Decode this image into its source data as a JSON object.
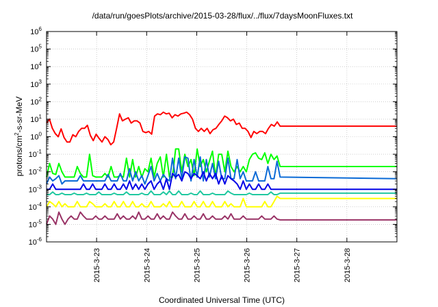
{
  "chart_data": {
    "type": "line",
    "title": "/data/run/goesPlots/archive/2015-03-28/flux/../flux/7daysMoonFluxes.txt",
    "xlabel": "Coordinated Universal Time (UTC)",
    "ylabel": "protons/cm²-s-sr-MeV",
    "y_scale": "log",
    "ylim": [
      "1e-6",
      "1e6"
    ],
    "y_tick_labels": [
      "10-6",
      "10-5",
      "10-4",
      "10-3",
      "10-2",
      "10-1",
      "100",
      "101",
      "102",
      "103",
      "104",
      "105",
      "106"
    ],
    "xlim": [
      "2015-03-22T00:00",
      "2015-03-29T00:00"
    ],
    "x_tick_labels": [
      "2015-3-23",
      "2015-3-24",
      "2015-3-25",
      "2015-3-26",
      "2015-3-27",
      "2015-3-28"
    ],
    "grid": true,
    "legend": "none",
    "series": [
      {
        "color": "#ff0000",
        "y": [
          6,
          10,
          3,
          1.5,
          1,
          2.8,
          0.9,
          0.5,
          0.5,
          1.3,
          1,
          2,
          3,
          3,
          4.5,
          1.2,
          0.6,
          1.4,
          0.8,
          0.5,
          1,
          0.7,
          0.35,
          0.5,
          3,
          20,
          8,
          10,
          12,
          6,
          8,
          8,
          6,
          2,
          1.7,
          2,
          1.4,
          15,
          20,
          18,
          25,
          20,
          22,
          12,
          18,
          15,
          20,
          22,
          25,
          18,
          10,
          3,
          2,
          3,
          2,
          3,
          1.5,
          2.5,
          3,
          5,
          8,
          15,
          12,
          8,
          10,
          5,
          6,
          3,
          3,
          2,
          0.9,
          2,
          1.5,
          2,
          2,
          1.5,
          3,
          5,
          4,
          7,
          4,
          4
        ]
      },
      {
        "color": "#00ff00",
        "y": [
          0.005,
          0.03,
          0.008,
          0.007,
          0.03,
          0.01,
          0.005,
          0.005,
          0.005,
          0.005,
          0.02,
          0.008,
          0.005,
          0.005,
          0.1,
          0.006,
          0.005,
          0.005,
          0.005,
          0.008,
          0.005,
          0.02,
          0.005,
          0.005,
          0.006,
          0.005,
          0.06,
          0.005,
          0.05,
          0.005,
          0.02,
          0.005,
          0.015,
          0.01,
          0.06,
          0.005,
          0.03,
          0.07,
          0.005,
          0.1,
          0.005,
          0.005,
          0.2,
          0.2,
          0.01,
          0.1,
          0.02,
          0.05,
          0.006,
          0.2,
          0.02,
          0.05,
          0.01,
          0.04,
          0.15,
          0.005,
          0.1,
          0.1,
          0.01,
          0.15,
          0.02,
          0.01,
          0.02,
          0.01,
          0.02,
          0.01,
          0.05,
          0.1,
          0.12,
          0.06,
          0.05,
          0.12,
          0.03,
          0.1,
          0.05,
          0.08,
          0.02,
          0.02
        ]
      },
      {
        "color": "#0a6ad6",
        "y": [
          0.002,
          0.005,
          0.003,
          0.004,
          0.006,
          0.002,
          0.003,
          0.003,
          0.003,
          0.003,
          0.003,
          0.006,
          0.003,
          0.003,
          0.003,
          0.003,
          0.003,
          0.003,
          0.003,
          0.003,
          0.007,
          0.003,
          0.003,
          0.003,
          0.008,
          0.003,
          0.003,
          0.015,
          0.003,
          0.01,
          0.003,
          0.006,
          0.002,
          0.006,
          0.02,
          0.003,
          0.008,
          0.003,
          0.007,
          0.004,
          0.003,
          0.06,
          0.004,
          0.06,
          0.004,
          0.07,
          0.06,
          0.003,
          0.05,
          0.005,
          0.07,
          0.003,
          0.05,
          0.005,
          0.03,
          0.004,
          0.04,
          0.004,
          0.004,
          0.06,
          0.004,
          0.004,
          0.05,
          0.004,
          0.01,
          0.003,
          0.003,
          0.003,
          0.01,
          0.003,
          0.003,
          0.003,
          0.02,
          0.004,
          0.004,
          0.04,
          0.005,
          0.004
        ]
      },
      {
        "color": "#0000e6",
        "y": [
          0.001,
          0.001,
          0.002,
          0.001,
          0.001,
          0.001,
          0.001,
          0.001,
          0.001,
          0.001,
          0.001,
          0.001,
          0.002,
          0.001,
          0.001,
          0.002,
          0.001,
          0.001,
          0.001,
          0.002,
          0.001,
          0.001,
          0.002,
          0.001,
          0.001,
          0.002,
          0.001,
          0.003,
          0.001,
          0.002,
          0.001,
          0.002,
          0.001,
          0.002,
          0.003,
          0.001,
          0.002,
          0.003,
          0.001,
          0.004,
          0.001,
          0.008,
          0.005,
          0.007,
          0.003,
          0.01,
          0.008,
          0.004,
          0.008,
          0.006,
          0.004,
          0.01,
          0.003,
          0.008,
          0.004,
          0.008,
          0.002,
          0.006,
          0.002,
          0.006,
          0.004,
          0.003,
          0.002,
          0.001,
          0.003,
          0.001,
          0.002,
          0.001,
          0.001,
          0.002,
          0.001,
          0.001,
          0.002,
          0.001,
          0.001,
          0.001,
          0.001,
          0.001
        ]
      },
      {
        "color": "#20c8a0",
        "y": [
          0.0005,
          0.0005,
          0.0007,
          0.0005,
          0.0005,
          0.0006,
          0.0005,
          0.0005,
          0.0005,
          0.0006,
          0.0005,
          0.0005,
          0.0005,
          0.0006,
          0.0005,
          0.0005,
          0.0005,
          0.0007,
          0.0005,
          0.0005,
          0.0005,
          0.0005,
          0.0006,
          0.0005,
          0.0005,
          0.0005,
          0.0007,
          0.0005,
          0.0005,
          0.0005,
          0.0005,
          0.0006,
          0.0005,
          0.0005,
          0.0008,
          0.0005,
          0.0005,
          0.0005,
          0.0007,
          0.0005,
          0.0008,
          0.0005,
          0.0005,
          0.0008,
          0.0005,
          0.0005,
          0.0005,
          0.0006,
          0.0005,
          0.0005,
          0.0008,
          0.0005,
          0.0005,
          0.0005,
          0.0006,
          0.0005,
          0.0005,
          0.0005,
          0.0005,
          0.0008,
          0.0006,
          0.0005,
          0.0005,
          0.0005,
          0.0005,
          0.0005,
          0.0006,
          0.0005,
          0.0005,
          0.0005,
          0.0005,
          0.0005,
          0.0005,
          0.0007,
          0.0005,
          0.0005,
          0.0006,
          0.0006
        ]
      },
      {
        "color": "#ffff00",
        "y": [
          0.0001,
          0.0002,
          0.00015,
          0.0001,
          0.0002,
          0.0001,
          0.00015,
          0.0001,
          0.0001,
          0.0001,
          0.0002,
          0.0001,
          0.0001,
          0.0001,
          0.0002,
          0.00015,
          0.0001,
          0.0001,
          0.0001,
          0.00015,
          0.0001,
          0.0001,
          0.0002,
          0.0001,
          0.0001,
          0.0002,
          0.0001,
          0.0001,
          0.0002,
          0.0001,
          0.0001,
          0.00015,
          0.0001,
          0.0001,
          0.0002,
          0.0001,
          0.0001,
          0.0001,
          0.00015,
          0.0001,
          0.0002,
          0.0001,
          0.0001,
          0.0001,
          0.0002,
          0.0001,
          0.0001,
          0.0001,
          0.0002,
          0.0001,
          0.0001,
          0.0002,
          0.0001,
          0.0001,
          0.0002,
          0.0001,
          0.0001,
          0.0001,
          0.0002,
          0.0001,
          0.00015,
          0.0001,
          0.0001,
          0.0001,
          0.0003,
          0.0001,
          0.0001,
          0.0001,
          0.0001,
          0.0001,
          0.0001,
          0.0002,
          0.0001,
          0.0001,
          0.0002,
          0.0004,
          0.0003,
          0.0003
        ]
      },
      {
        "color": "#993366",
        "y": [
          1e-05,
          3e-05,
          2e-05,
          1e-05,
          5e-05,
          2e-05,
          1e-05,
          2e-05,
          3e-05,
          2e-05,
          2e-05,
          5e-05,
          3e-05,
          2e-05,
          2e-05,
          2e-05,
          3e-05,
          2e-05,
          2e-05,
          3e-05,
          2e-05,
          2e-05,
          2e-05,
          4e-05,
          2e-05,
          3e-05,
          2e-05,
          2e-05,
          3e-05,
          2e-05,
          5e-05,
          2e-05,
          2e-05,
          3e-05,
          2e-05,
          2e-05,
          4e-05,
          2e-05,
          3e-05,
          2e-05,
          2e-05,
          5e-05,
          3e-05,
          2e-05,
          2e-05,
          4e-05,
          2e-05,
          2e-05,
          3e-05,
          2e-05,
          2e-05,
          4e-05,
          2e-05,
          2e-05,
          3e-05,
          2e-05,
          2e-05,
          2e-05,
          3e-05,
          2e-05,
          4e-05,
          2e-05,
          2e-05,
          2e-05,
          3e-05,
          2e-05,
          2e-05,
          2e-05,
          2e-05,
          2e-05,
          3e-05,
          2e-05,
          2e-05,
          2e-05,
          3e-05,
          2e-05,
          1.8e-05,
          1.8e-05
        ]
      }
    ]
  }
}
